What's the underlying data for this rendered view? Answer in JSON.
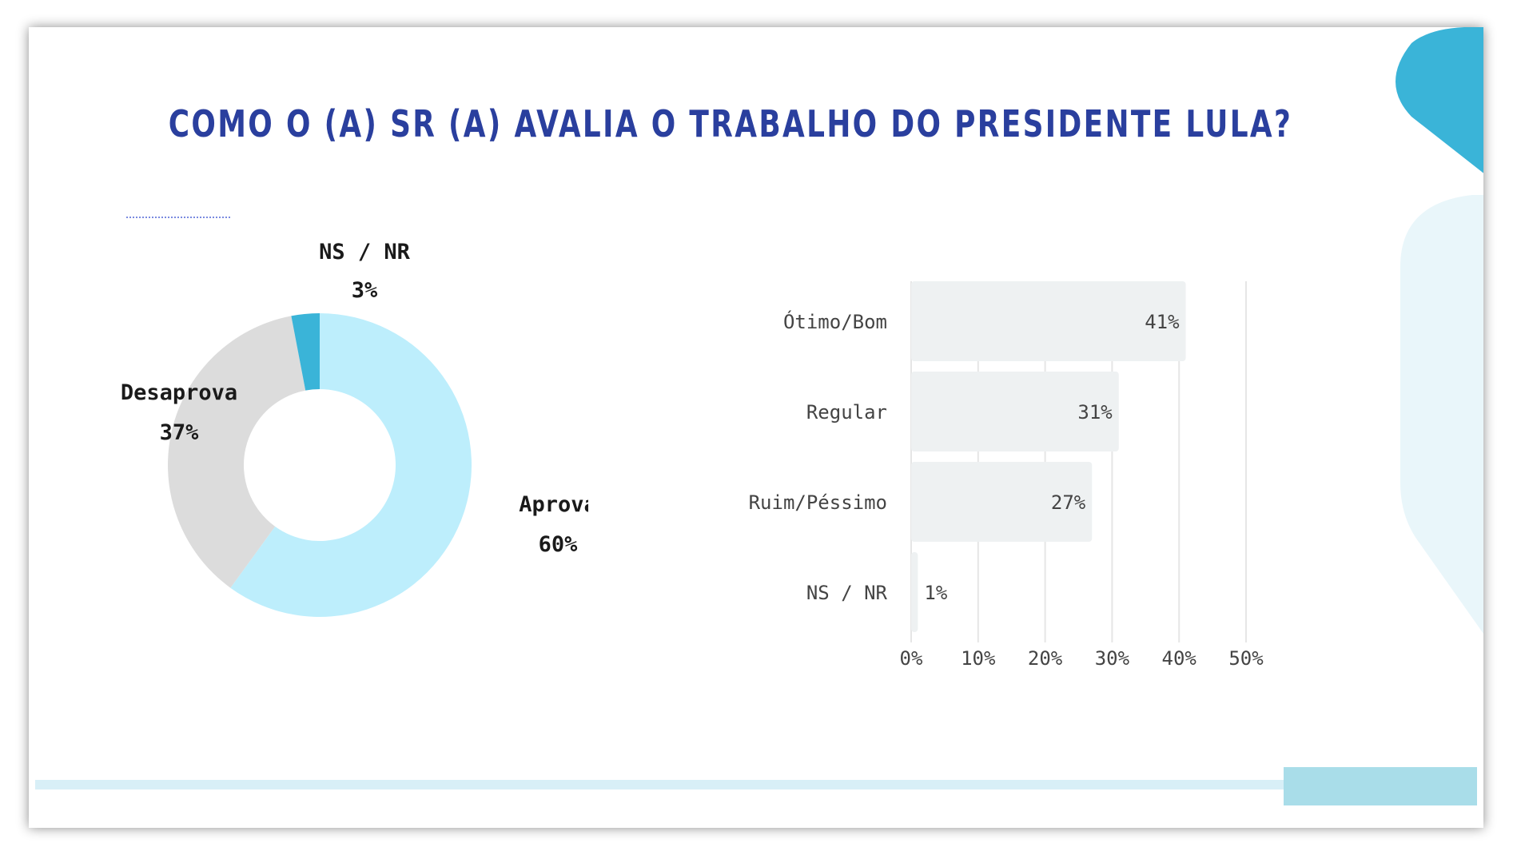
{
  "title": "COMO O (A) SR (A) AVALIA O TRABALHO DO PRESIDENTE LULA?",
  "colors": {
    "title": "#2a3f9e",
    "aprova": "#bdeefc",
    "desaprova": "#dcdcdc",
    "nsnr": "#3ab4d8",
    "bar": "#eef1f2",
    "grid": "#e6e6e6"
  },
  "chart_data": [
    {
      "type": "pie",
      "title": "",
      "slices": [
        {
          "name": "Aprova",
          "value": 60,
          "label": "60%"
        },
        {
          "name": "Desaprova",
          "value": 37,
          "label": "37%"
        },
        {
          "name": "NS / NR",
          "value": 3,
          "label": "3%"
        }
      ]
    },
    {
      "type": "bar",
      "orientation": "horizontal",
      "title": "",
      "categories": [
        "Ótimo/Bom",
        "Regular",
        "Ruim/Péssimo",
        "NS / NR"
      ],
      "values": [
        41,
        31,
        27,
        1
      ],
      "value_labels": [
        "41%",
        "31%",
        "27%",
        "1%"
      ],
      "xlim": [
        0,
        50
      ],
      "xticks": [
        0,
        10,
        20,
        30,
        40,
        50
      ],
      "xtick_labels": [
        "0%",
        "10%",
        "20%",
        "30%",
        "40%",
        "50%"
      ],
      "grid": true
    }
  ]
}
